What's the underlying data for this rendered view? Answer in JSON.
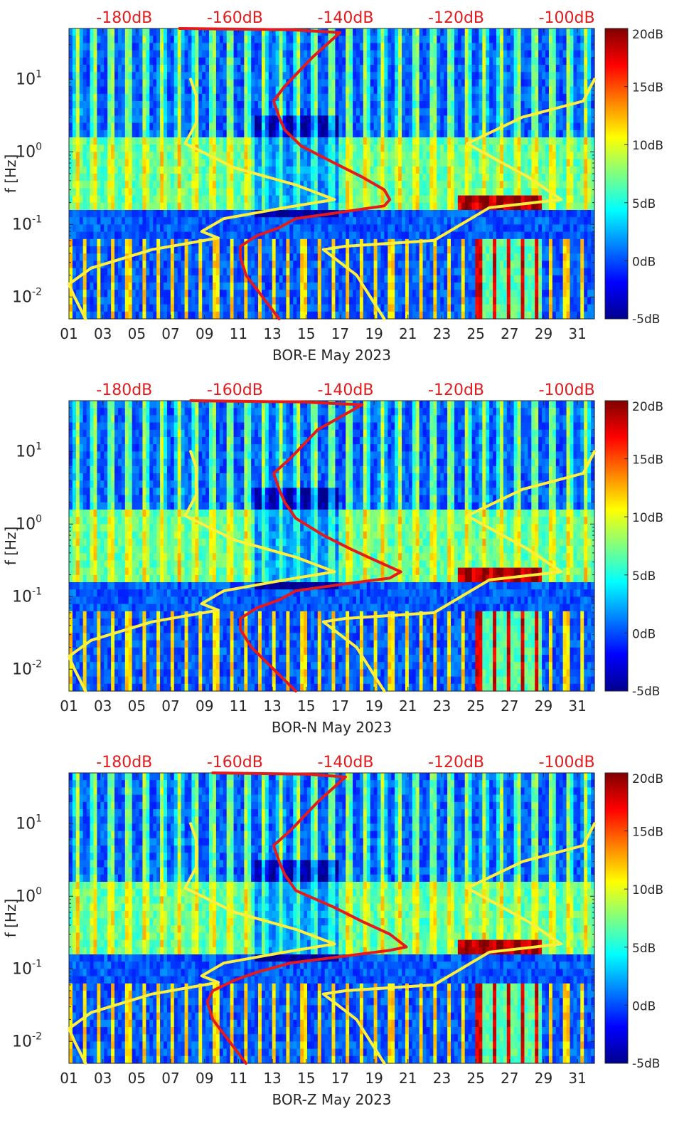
{
  "figure": {
    "panels": [
      "BOR-E May 2023",
      "BOR-N May 2023",
      "BOR-Z May 2023"
    ]
  },
  "colors": {
    "median_curve": "#e41a1c",
    "noise_model": "#ffef3a",
    "top_scale": "#e41a1c",
    "colormap": [
      "#00008f",
      "#0000ff",
      "#0080ff",
      "#00ffff",
      "#80ff80",
      "#ffff00",
      "#ff8000",
      "#ff0000",
      "#800000"
    ]
  },
  "chart_data": [
    {
      "type": "heatmap",
      "title": "",
      "xlabel": "BOR-E May 2023",
      "ylabel": "f [Hz]",
      "x_ticks": [
        "01",
        "03",
        "05",
        "07",
        "09",
        "11",
        "13",
        "15",
        "17",
        "19",
        "21",
        "23",
        "25",
        "27",
        "29",
        "31"
      ],
      "x_range_days": [
        1,
        32
      ],
      "y_scale": "log",
      "y_ticks": [
        "10^1",
        "10^0",
        "10^-1",
        "10^-2"
      ],
      "y_range_hz": [
        0.005,
        50
      ],
      "top_axis_ticks": [
        "-180dB",
        "-160dB",
        "-140dB",
        "-120dB",
        "-100dB"
      ],
      "top_axis_range_db": [
        -190,
        -95
      ],
      "colorbar_ticks": [
        "20dB",
        "15dB",
        "10dB",
        "5dB",
        "0dB",
        "-5dB"
      ],
      "colorbar_range_db": [
        -5,
        20
      ],
      "series": [
        {
          "type": "line",
          "color": "red",
          "points_db_hz": [
            [
              -170,
              50
            ],
            [
              -150,
              48
            ],
            [
              -141,
              44
            ],
            [
              -146,
              20
            ],
            [
              -151,
              8
            ],
            [
              -153,
              5
            ],
            [
              -152,
              3
            ],
            [
              -151,
              2
            ],
            [
              -148,
              1.2
            ],
            [
              -142,
              0.7
            ],
            [
              -137,
              0.45
            ],
            [
              -133,
              0.3
            ],
            [
              -132,
              0.22
            ],
            [
              -133,
              0.18
            ],
            [
              -140,
              0.15
            ],
            [
              -149,
              0.12
            ],
            [
              -152,
              0.09
            ],
            [
              -156,
              0.07
            ],
            [
              -159,
              0.05
            ],
            [
              -159,
              0.035
            ],
            [
              -158,
              0.02
            ],
            [
              -155,
              0.01
            ],
            [
              -152,
              0.005
            ]
          ]
        },
        {
          "type": "line",
          "color": "yellow",
          "points_db_hz": [
            [
              -168,
              10
            ],
            [
              -167,
              6
            ],
            [
              -167,
              2.5
            ],
            [
              -169,
              1.3
            ],
            [
              -160,
              0.6
            ],
            [
              -149,
              0.35
            ],
            [
              -142,
              0.22
            ],
            [
              -151,
              0.17
            ],
            [
              -162,
              0.12
            ],
            [
              -166,
              0.08
            ],
            [
              -163,
              0.065
            ],
            [
              -175,
              0.045
            ],
            [
              -186,
              0.025
            ],
            [
              -190,
              0.015
            ],
            [
              -189,
              0.01
            ],
            [
              -187,
              0.005
            ]
          ]
        },
        {
          "type": "line",
          "color": "yellow",
          "points_db_hz": [
            [
              -95,
              10
            ],
            [
              -97,
              5
            ],
            [
              -108,
              3
            ],
            [
              -118,
              1.3
            ],
            [
              -107,
              0.45
            ],
            [
              -101,
              0.22
            ],
            [
              -114,
              0.17
            ],
            [
              -124,
              0.06
            ],
            [
              -140,
              0.05
            ],
            [
              -144,
              0.045
            ],
            [
              -138,
              0.02
            ],
            [
              -133,
              0.005
            ]
          ]
        }
      ]
    },
    {
      "type": "heatmap",
      "title": "",
      "xlabel": "BOR-N May 2023",
      "ylabel": "f [Hz]",
      "x_ticks": [
        "01",
        "03",
        "05",
        "07",
        "09",
        "11",
        "13",
        "15",
        "17",
        "19",
        "21",
        "23",
        "25",
        "27",
        "29",
        "31"
      ],
      "x_range_days": [
        1,
        32
      ],
      "y_scale": "log",
      "y_ticks": [
        "10^1",
        "10^0",
        "10^-1",
        "10^-2"
      ],
      "y_range_hz": [
        0.005,
        50
      ],
      "top_axis_ticks": [
        "-180dB",
        "-160dB",
        "-140dB",
        "-120dB",
        "-100dB"
      ],
      "top_axis_range_db": [
        -190,
        -95
      ],
      "colorbar_ticks": [
        "20dB",
        "15dB",
        "10dB",
        "5dB",
        "0dB",
        "-5dB"
      ],
      "colorbar_range_db": [
        -5,
        20
      ],
      "series": [
        {
          "type": "line",
          "color": "red",
          "points_db_hz": [
            [
              -168,
              50
            ],
            [
              -148,
              48
            ],
            [
              -137,
              44
            ],
            [
              -145,
              20
            ],
            [
              -150,
              8
            ],
            [
              -153,
              5
            ],
            [
              -152,
              3
            ],
            [
              -151,
              2
            ],
            [
              -149,
              1.2
            ],
            [
              -144,
              0.7
            ],
            [
              -139,
              0.45
            ],
            [
              -134,
              0.3
            ],
            [
              -130,
              0.22
            ],
            [
              -132,
              0.18
            ],
            [
              -140,
              0.15
            ],
            [
              -149,
              0.12
            ],
            [
              -152,
              0.09
            ],
            [
              -156,
              0.07
            ],
            [
              -159,
              0.05
            ],
            [
              -159,
              0.035
            ],
            [
              -157,
              0.02
            ],
            [
              -153,
              0.01
            ],
            [
              -149,
              0.005
            ]
          ]
        },
        {
          "type": "line",
          "color": "yellow",
          "points_db_hz": [
            [
              -168,
              10
            ],
            [
              -167,
              6
            ],
            [
              -167,
              2.5
            ],
            [
              -169,
              1.3
            ],
            [
              -160,
              0.6
            ],
            [
              -149,
              0.35
            ],
            [
              -142,
              0.22
            ],
            [
              -151,
              0.17
            ],
            [
              -162,
              0.12
            ],
            [
              -166,
              0.08
            ],
            [
              -163,
              0.065
            ],
            [
              -175,
              0.045
            ],
            [
              -186,
              0.025
            ],
            [
              -190,
              0.015
            ],
            [
              -189,
              0.01
            ],
            [
              -187,
              0.005
            ]
          ]
        },
        {
          "type": "line",
          "color": "yellow",
          "points_db_hz": [
            [
              -95,
              10
            ],
            [
              -97,
              5
            ],
            [
              -108,
              3
            ],
            [
              -118,
              1.3
            ],
            [
              -107,
              0.45
            ],
            [
              -101,
              0.22
            ],
            [
              -114,
              0.17
            ],
            [
              -124,
              0.06
            ],
            [
              -140,
              0.05
            ],
            [
              -144,
              0.045
            ],
            [
              -138,
              0.02
            ],
            [
              -133,
              0.005
            ]
          ]
        }
      ]
    },
    {
      "type": "heatmap",
      "title": "",
      "xlabel": "BOR-Z May 2023",
      "ylabel": "f [Hz]",
      "x_ticks": [
        "01",
        "03",
        "05",
        "07",
        "09",
        "11",
        "13",
        "15",
        "17",
        "19",
        "21",
        "23",
        "25",
        "27",
        "29",
        "31"
      ],
      "x_range_days": [
        1,
        32
      ],
      "y_scale": "log",
      "y_ticks": [
        "10^1",
        "10^0",
        "10^-1",
        "10^-2"
      ],
      "y_range_hz": [
        0.005,
        50
      ],
      "top_axis_ticks": [
        "-180dB",
        "-160dB",
        "-140dB",
        "-120dB",
        "-100dB"
      ],
      "top_axis_range_db": [
        -190,
        -95
      ],
      "colorbar_ticks": [
        "20dB",
        "15dB",
        "10dB",
        "5dB",
        "0dB",
        "-5dB"
      ],
      "colorbar_range_db": [
        -5,
        20
      ],
      "series": [
        {
          "type": "line",
          "color": "red",
          "points_db_hz": [
            [
              -164,
              50
            ],
            [
              -147,
              48
            ],
            [
              -140,
              44
            ],
            [
              -145,
              20
            ],
            [
              -150,
              8
            ],
            [
              -153,
              5
            ],
            [
              -152,
              3
            ],
            [
              -151,
              2
            ],
            [
              -149,
              1.2
            ],
            [
              -142,
              0.7
            ],
            [
              -137,
              0.45
            ],
            [
              -132,
              0.3
            ],
            [
              -129,
              0.2
            ],
            [
              -132,
              0.18
            ],
            [
              -140,
              0.15
            ],
            [
              -150,
              0.12
            ],
            [
              -156,
              0.09
            ],
            [
              -160,
              0.07
            ],
            [
              -164,
              0.05
            ],
            [
              -165,
              0.035
            ],
            [
              -164,
              0.02
            ],
            [
              -161,
              0.01
            ],
            [
              -158,
              0.005
            ]
          ]
        },
        {
          "type": "line",
          "color": "yellow",
          "points_db_hz": [
            [
              -168,
              10
            ],
            [
              -167,
              6
            ],
            [
              -167,
              2.5
            ],
            [
              -169,
              1.3
            ],
            [
              -160,
              0.6
            ],
            [
              -149,
              0.35
            ],
            [
              -142,
              0.22
            ],
            [
              -151,
              0.17
            ],
            [
              -162,
              0.12
            ],
            [
              -166,
              0.08
            ],
            [
              -163,
              0.065
            ],
            [
              -175,
              0.045
            ],
            [
              -186,
              0.025
            ],
            [
              -190,
              0.015
            ],
            [
              -189,
              0.01
            ],
            [
              -187,
              0.005
            ]
          ]
        },
        {
          "type": "line",
          "color": "yellow",
          "points_db_hz": [
            [
              -95,
              10
            ],
            [
              -97,
              5
            ],
            [
              -108,
              3
            ],
            [
              -118,
              1.3
            ],
            [
              -107,
              0.45
            ],
            [
              -101,
              0.22
            ],
            [
              -114,
              0.17
            ],
            [
              -124,
              0.06
            ],
            [
              -140,
              0.05
            ],
            [
              -144,
              0.045
            ],
            [
              -138,
              0.02
            ],
            [
              -133,
              0.005
            ]
          ]
        }
      ]
    }
  ]
}
